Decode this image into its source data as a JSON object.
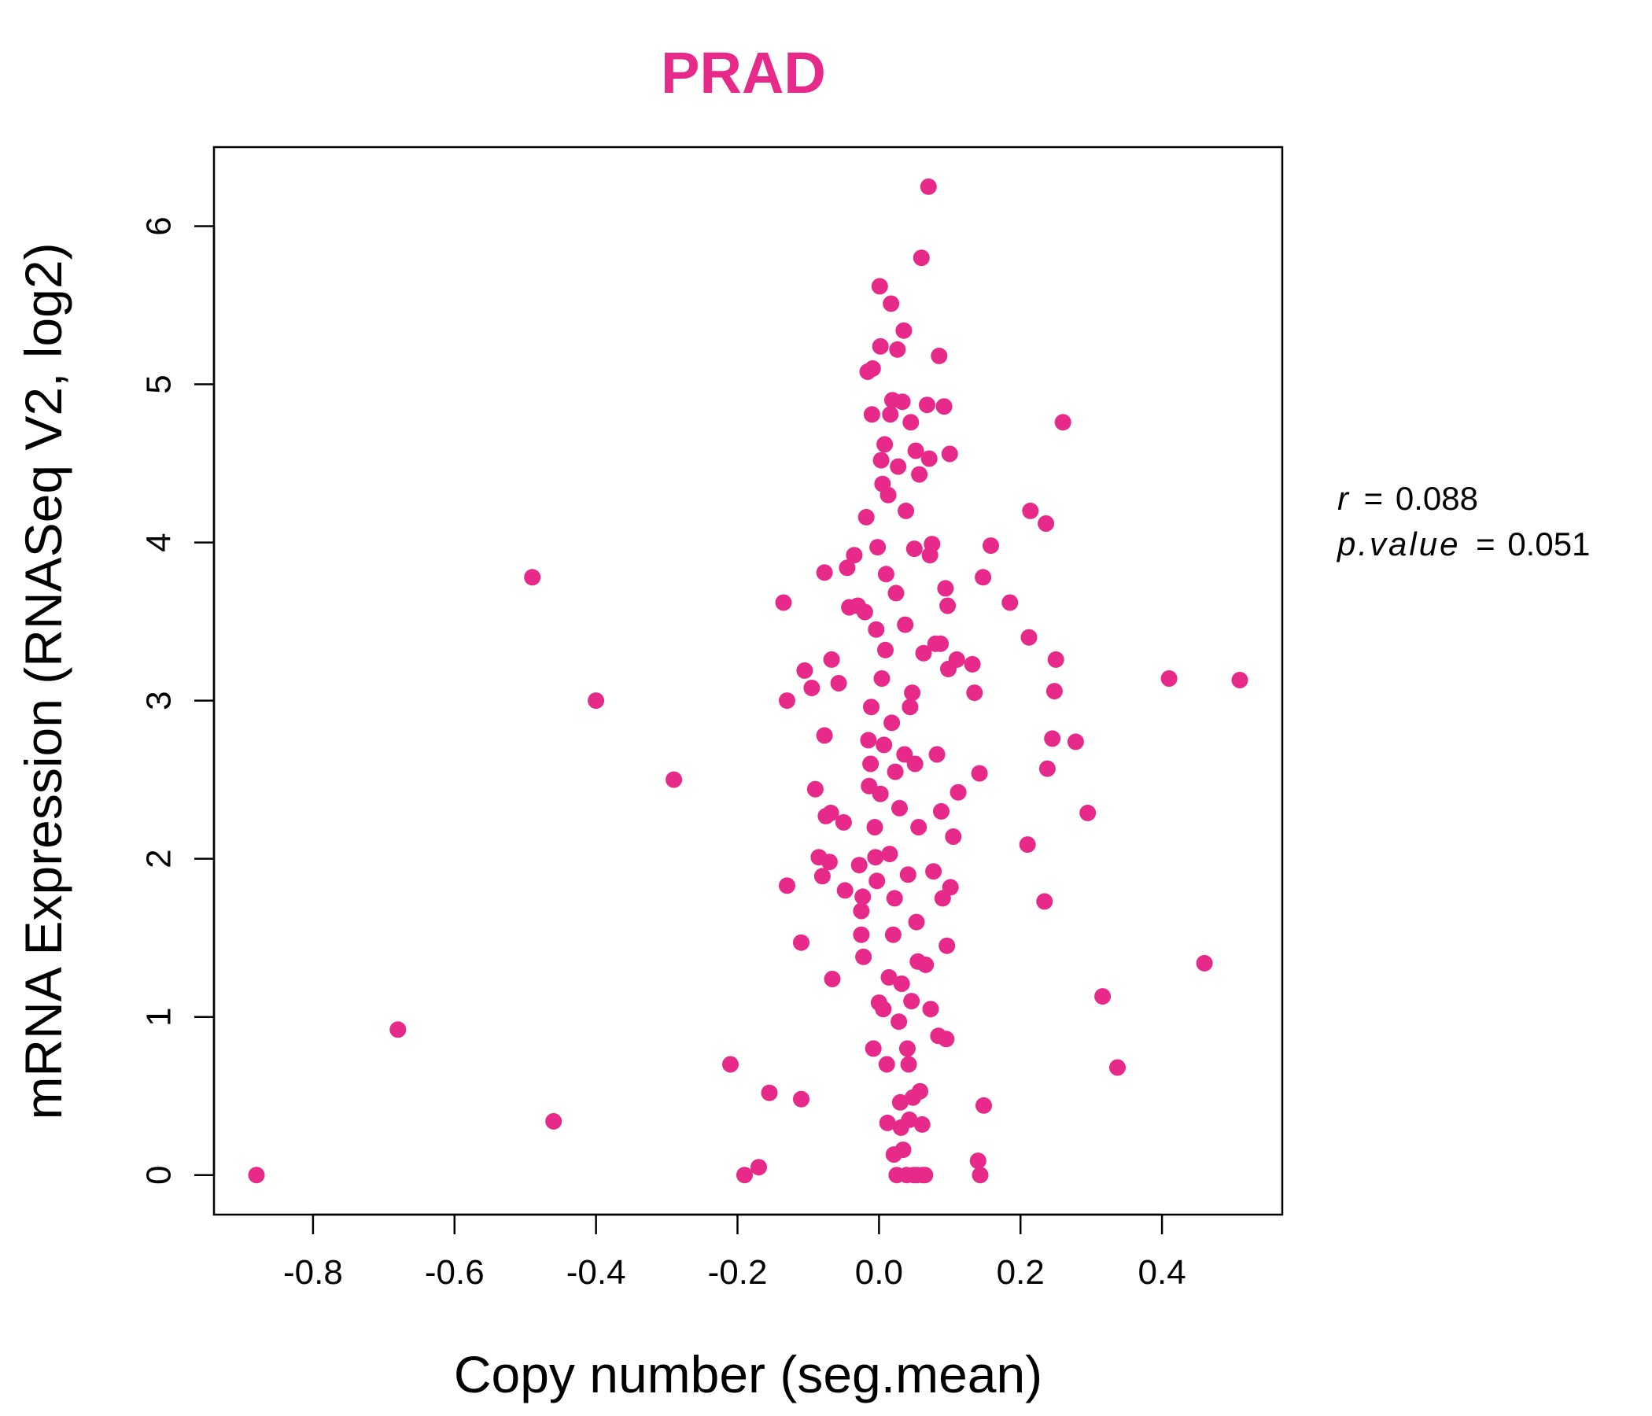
{
  "chart_data": {
    "type": "scatter",
    "title": "PRAD",
    "xlabel": "Copy number (seg.mean)",
    "ylabel": "mRNA Expression (RNASeq V2, log2)",
    "xlim": [
      -0.94,
      0.57
    ],
    "ylim": [
      -0.25,
      6.5
    ],
    "xticks": [
      -0.8,
      -0.6,
      -0.4,
      -0.2,
      0.0,
      0.2,
      0.4
    ],
    "xtick_labels": [
      "-0.8",
      "-0.6",
      "-0.4",
      "-0.2",
      "0.0",
      "0.2",
      "0.4"
    ],
    "yticks": [
      0,
      1,
      2,
      3,
      4,
      5,
      6
    ],
    "ytick_labels": [
      "0",
      "1",
      "2",
      "3",
      "4",
      "5",
      "6"
    ],
    "stats": {
      "r_label": "r",
      "r_value": "0.088",
      "p_label": "p.value",
      "p_value": "0.051",
      "equals": "="
    },
    "colors": {
      "points": "#E7298A",
      "title": "#E7298A",
      "axis": "#000000"
    },
    "points": [
      [
        -0.88,
        0.0
      ],
      [
        -0.68,
        0.92
      ],
      [
        -0.49,
        3.78
      ],
      [
        -0.46,
        0.34
      ],
      [
        -0.4,
        3.0
      ],
      [
        -0.29,
        2.5
      ],
      [
        -0.21,
        0.7
      ],
      [
        -0.19,
        0.0
      ],
      [
        -0.17,
        0.05
      ],
      [
        -0.155,
        0.52
      ],
      [
        -0.135,
        3.62
      ],
      [
        -0.13,
        3.0
      ],
      [
        -0.13,
        1.83
      ],
      [
        -0.11,
        0.48
      ],
      [
        -0.11,
        1.47
      ],
      [
        -0.105,
        3.19
      ],
      [
        -0.095,
        3.08
      ],
      [
        -0.09,
        2.44
      ],
      [
        -0.085,
        2.01
      ],
      [
        -0.08,
        1.89
      ],
      [
        -0.077,
        2.78
      ],
      [
        -0.077,
        3.81
      ],
      [
        -0.075,
        2.27
      ],
      [
        -0.07,
        1.98
      ],
      [
        -0.068,
        2.29
      ],
      [
        -0.067,
        3.26
      ],
      [
        -0.066,
        1.24
      ],
      [
        -0.057,
        3.11
      ],
      [
        -0.05,
        2.23
      ],
      [
        -0.048,
        1.8
      ],
      [
        -0.045,
        3.84
      ],
      [
        -0.042,
        3.59
      ],
      [
        -0.035,
        3.92
      ],
      [
        -0.03,
        3.6
      ],
      [
        -0.028,
        1.96
      ],
      [
        -0.025,
        1.67
      ],
      [
        -0.025,
        1.52
      ],
      [
        -0.023,
        1.76
      ],
      [
        -0.022,
        1.38
      ],
      [
        -0.02,
        3.56
      ],
      [
        -0.018,
        4.16
      ],
      [
        -0.016,
        5.08
      ],
      [
        -0.015,
        2.75
      ],
      [
        -0.014,
        2.46
      ],
      [
        -0.012,
        2.6
      ],
      [
        -0.011,
        2.96
      ],
      [
        -0.01,
        4.81
      ],
      [
        -0.009,
        5.1
      ],
      [
        -0.008,
        0.8
      ],
      [
        -0.006,
        2.2
      ],
      [
        -0.005,
        2.01
      ],
      [
        -0.004,
        3.45
      ],
      [
        -0.003,
        1.86
      ],
      [
        -0.002,
        3.97
      ],
      [
        0.0,
        1.09
      ],
      [
        0.001,
        5.62
      ],
      [
        0.002,
        5.24
      ],
      [
        0.002,
        2.41
      ],
      [
        0.003,
        4.52
      ],
      [
        0.004,
        3.14
      ],
      [
        0.005,
        4.37
      ],
      [
        0.006,
        1.05
      ],
      [
        0.007,
        2.72
      ],
      [
        0.008,
        4.62
      ],
      [
        0.009,
        3.32
      ],
      [
        0.01,
        3.8
      ],
      [
        0.011,
        0.7
      ],
      [
        0.012,
        0.33
      ],
      [
        0.013,
        4.3
      ],
      [
        0.014,
        1.25
      ],
      [
        0.015,
        2.03
      ],
      [
        0.016,
        4.81
      ],
      [
        0.017,
        5.51
      ],
      [
        0.018,
        2.86
      ],
      [
        0.019,
        4.9
      ],
      [
        0.02,
        1.52
      ],
      [
        0.021,
        0.13
      ],
      [
        0.022,
        1.75
      ],
      [
        0.023,
        2.55
      ],
      [
        0.024,
        3.68
      ],
      [
        0.025,
        0.0
      ],
      [
        0.026,
        5.22
      ],
      [
        0.027,
        4.48
      ],
      [
        0.028,
        0.97
      ],
      [
        0.029,
        2.32
      ],
      [
        0.03,
        0.46
      ],
      [
        0.031,
        0.3
      ],
      [
        0.032,
        1.21
      ],
      [
        0.033,
        4.89
      ],
      [
        0.034,
        0.16
      ],
      [
        0.035,
        5.34
      ],
      [
        0.036,
        2.66
      ],
      [
        0.037,
        3.48
      ],
      [
        0.038,
        4.2
      ],
      [
        0.039,
        0.0
      ],
      [
        0.04,
        0.8
      ],
      [
        0.041,
        1.9
      ],
      [
        0.042,
        0.7
      ],
      [
        0.043,
        0.35
      ],
      [
        0.044,
        2.96
      ],
      [
        0.045,
        4.76
      ],
      [
        0.046,
        1.1
      ],
      [
        0.047,
        3.05
      ],
      [
        0.048,
        0.49
      ],
      [
        0.049,
        0.0
      ],
      [
        0.05,
        3.96
      ],
      [
        0.051,
        2.6
      ],
      [
        0.052,
        4.58
      ],
      [
        0.053,
        1.6
      ],
      [
        0.054,
        0.0
      ],
      [
        0.055,
        1.35
      ],
      [
        0.056,
        2.2
      ],
      [
        0.057,
        4.43
      ],
      [
        0.058,
        0.53
      ],
      [
        0.06,
        5.8
      ],
      [
        0.061,
        0.32
      ],
      [
        0.062,
        0.0
      ],
      [
        0.063,
        3.3
      ],
      [
        0.065,
        0.0
      ],
      [
        0.066,
        1.33
      ],
      [
        0.068,
        4.87
      ],
      [
        0.07,
        6.25
      ],
      [
        0.071,
        4.53
      ],
      [
        0.072,
        3.92
      ],
      [
        0.073,
        1.05
      ],
      [
        0.075,
        3.99
      ],
      [
        0.077,
        1.92
      ],
      [
        0.08,
        3.36
      ],
      [
        0.082,
        2.66
      ],
      [
        0.084,
        0.88
      ],
      [
        0.085,
        5.18
      ],
      [
        0.087,
        3.36
      ],
      [
        0.088,
        2.3
      ],
      [
        0.09,
        1.75
      ],
      [
        0.092,
        4.86
      ],
      [
        0.094,
        3.71
      ],
      [
        0.095,
        0.86
      ],
      [
        0.096,
        1.45
      ],
      [
        0.097,
        3.6
      ],
      [
        0.098,
        3.2
      ],
      [
        0.1,
        4.56
      ],
      [
        0.101,
        1.82
      ],
      [
        0.105,
        2.14
      ],
      [
        0.11,
        3.26
      ],
      [
        0.112,
        2.42
      ],
      [
        0.132,
        3.23
      ],
      [
        0.135,
        3.05
      ],
      [
        0.14,
        0.09
      ],
      [
        0.142,
        2.54
      ],
      [
        0.143,
        0.0
      ],
      [
        0.147,
        3.78
      ],
      [
        0.148,
        0.44
      ],
      [
        0.158,
        3.98
      ],
      [
        0.185,
        3.62
      ],
      [
        0.21,
        2.09
      ],
      [
        0.212,
        3.4
      ],
      [
        0.214,
        4.2
      ],
      [
        0.234,
        1.73
      ],
      [
        0.236,
        4.12
      ],
      [
        0.238,
        2.57
      ],
      [
        0.245,
        2.76
      ],
      [
        0.248,
        3.06
      ],
      [
        0.25,
        3.26
      ],
      [
        0.26,
        4.76
      ],
      [
        0.278,
        2.74
      ],
      [
        0.295,
        2.29
      ],
      [
        0.316,
        1.13
      ],
      [
        0.337,
        0.68
      ],
      [
        0.41,
        3.14
      ],
      [
        0.46,
        1.34
      ],
      [
        0.51,
        3.13
      ]
    ]
  }
}
